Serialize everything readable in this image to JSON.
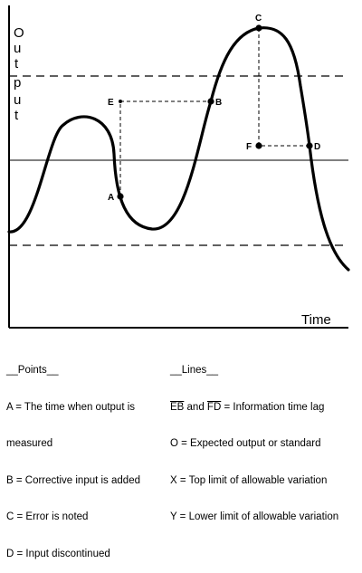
{
  "diagram": {
    "y_axis_letters": [
      "O",
      "u",
      "t",
      "p",
      "u",
      "t"
    ],
    "x_axis_label": "Time",
    "points": {
      "A": "A",
      "B": "B",
      "C": "C",
      "D": "D",
      "E": "E",
      "F": "F"
    }
  },
  "legend": {
    "points_heading": "__Points__",
    "points_items": [
      "A = The time when output is",
      "measured",
      "B = Corrective input is added",
      "C = Error is noted",
      "D = Input discontinued"
    ],
    "lines_heading": "__Lines__",
    "lines_item_eb_fd_prefix": "EB",
    "lines_item_eb_fd_mid": " and ",
    "lines_item_eb_fd_fd": "FD",
    "lines_item_eb_fd_suffix": " = Information time lag",
    "lines_items": [
      "O = Expected output or standard",
      "X = Top limit of allowable variation",
      "Y = Lower limit of allowable variation"
    ]
  }
}
